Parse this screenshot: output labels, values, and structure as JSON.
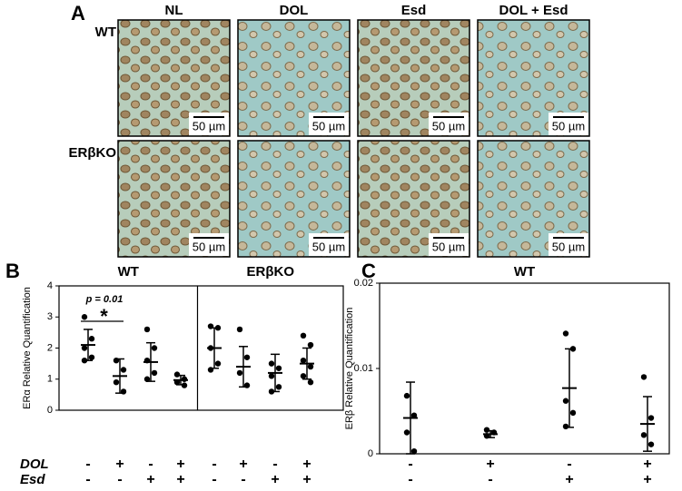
{
  "panel_a": {
    "label": "A",
    "columns": [
      "NL",
      "DOL",
      "Esd",
      "DOL + Esd"
    ],
    "rows": [
      "WT",
      "ERβKO"
    ],
    "scale_bars": [
      "50 µm",
      "50 µm",
      "50 µm",
      "50 µm",
      "50 µm",
      "50 µm",
      "50 µm",
      "50 µm"
    ]
  },
  "treatment_names": [
    "DOL",
    "Esd"
  ],
  "chart_data": [
    {
      "type": "dot",
      "label": "B",
      "y_label": "ERα Relative Quantification",
      "ylim": [
        0,
        4
      ],
      "yticks": [
        0,
        1,
        2,
        3,
        4
      ],
      "group_titles": [
        "WT",
        "ERβKO"
      ],
      "annotation": "p = 0.01",
      "significance": "*",
      "treatments": [
        [
          "-",
          "+",
          "-",
          "+",
          "-",
          "+",
          "-",
          "+"
        ],
        [
          "-",
          "-",
          "+",
          "+",
          "-",
          "-",
          "+",
          "+"
        ]
      ],
      "groups": [
        {
          "points": [
            3.0,
            2.3,
            2.0,
            1.7,
            1.6
          ],
          "mean": 2.1,
          "sd": 0.5
        },
        {
          "points": [
            1.6,
            1.3,
            0.9,
            0.6
          ],
          "mean": 1.1,
          "sd": 0.55
        },
        {
          "points": [
            2.6,
            2.0,
            1.6,
            1.2,
            1.0
          ],
          "mean": 1.55,
          "sd": 0.62
        },
        {
          "points": [
            1.15,
            1.0,
            0.9,
            0.8
          ],
          "mean": 0.97,
          "sd": 0.15
        },
        {
          "points": [
            2.7,
            2.65,
            2.0,
            1.5,
            1.3
          ],
          "mean": 2.0,
          "sd": 0.65
        },
        {
          "points": [
            2.6,
            1.7,
            1.2,
            0.8
          ],
          "mean": 1.4,
          "sd": 0.65
        },
        {
          "points": [
            1.5,
            1.35,
            1.1,
            0.75,
            0.6
          ],
          "mean": 1.2,
          "sd": 0.6
        },
        {
          "points": [
            2.4,
            2.1,
            1.6,
            1.4,
            1.1,
            0.9
          ],
          "mean": 1.5,
          "sd": 0.5
        }
      ]
    },
    {
      "type": "dot",
      "label": "C",
      "y_label": "ERβ Relative Quantification",
      "ylim": [
        0,
        0.02
      ],
      "yticks": [
        0,
        0.01,
        0.02
      ],
      "title": "WT",
      "treatments": [
        [
          "-",
          "+",
          "-",
          "+"
        ],
        [
          "-",
          "-",
          "+",
          "+"
        ]
      ],
      "groups": [
        {
          "points": [
            0.0068,
            0.0045,
            0.0025,
            0.0003
          ],
          "mean": 0.0042,
          "sd": 0.0042
        },
        {
          "points": [
            0.0028,
            0.0025,
            0.0021
          ],
          "mean": 0.0023,
          "sd": 0.0004
        },
        {
          "points": [
            0.0141,
            0.0123,
            0.0062,
            0.0048,
            0.0032
          ],
          "mean": 0.0077,
          "sd": 0.0046
        },
        {
          "points": [
            0.009,
            0.0042,
            0.0022,
            0.0011
          ],
          "mean": 0.0035,
          "sd": 0.0032
        }
      ]
    }
  ]
}
